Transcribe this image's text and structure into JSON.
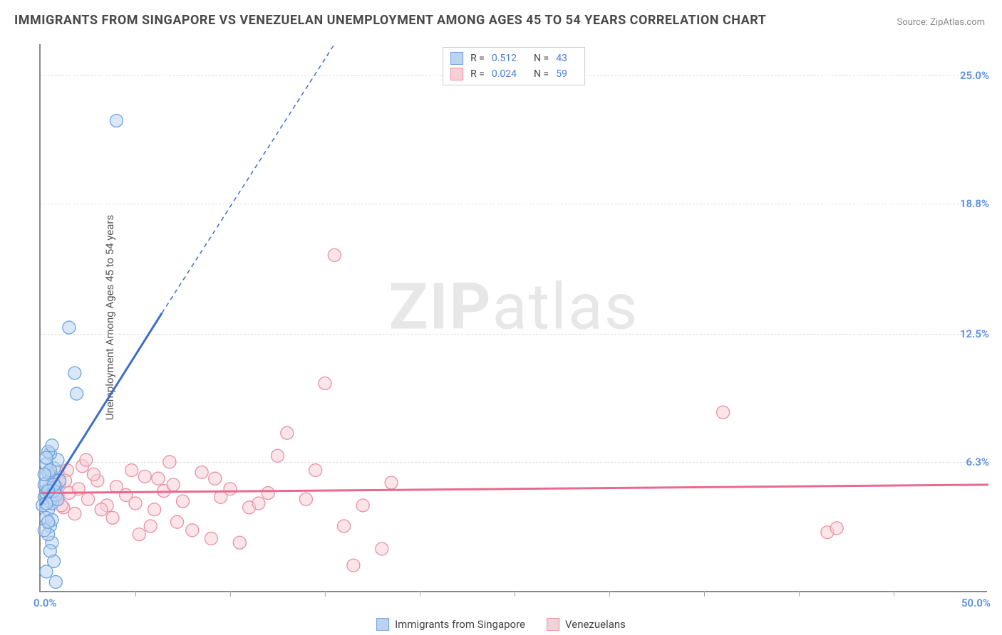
{
  "title": "IMMIGRANTS FROM SINGAPORE VS VENEZUELAN UNEMPLOYMENT AMONG AGES 45 TO 54 YEARS CORRELATION CHART",
  "source": "Source: ZipAtlas.com",
  "y_axis_label": "Unemployment Among Ages 45 to 54 years",
  "watermark_bold": "ZIP",
  "watermark_light": "atlas",
  "colors": {
    "series_a_fill": "#b9d3f0",
    "series_a_stroke": "#6fa3e0",
    "series_a_line": "#3d6fc9",
    "series_b_fill": "#f8cfd7",
    "series_b_stroke": "#e890a5",
    "series_b_line": "#e86a8e",
    "tick_label": "#5b8fe0",
    "grid": "#dddddd",
    "axis": "#888888",
    "text": "#4a4a4a"
  },
  "chart": {
    "type": "scatter",
    "xlim": [
      0,
      50
    ],
    "ylim": [
      0,
      26.5
    ],
    "y_ticks": [
      {
        "v": 6.3,
        "label": "6.3%"
      },
      {
        "v": 12.5,
        "label": "12.5%"
      },
      {
        "v": 18.8,
        "label": "18.8%"
      },
      {
        "v": 25.0,
        "label": "25.0%"
      }
    ],
    "x_origin_label": "0.0%",
    "x_max_label": "50.0%",
    "x_tick_positions": [
      5,
      10,
      15,
      20,
      25,
      30,
      35,
      40,
      45
    ],
    "marker_radius": 9,
    "marker_stroke_width": 1.3,
    "trend_line_width_solid": 3,
    "trend_line_width_dash": 1.5,
    "trend_dash": "6,5"
  },
  "legend_top": [
    {
      "swatch_fill": "#b9d3f0",
      "swatch_stroke": "#6fa3e0",
      "r": "0.512",
      "n": "43"
    },
    {
      "swatch_fill": "#f8cfd7",
      "swatch_stroke": "#e890a5",
      "r": "0.024",
      "n": "59"
    }
  ],
  "legend_bottom": [
    {
      "swatch_fill": "#b9d3f0",
      "swatch_stroke": "#6fa3e0",
      "label": "Immigrants from Singapore"
    },
    {
      "swatch_fill": "#f8cfd7",
      "swatch_stroke": "#e890a5",
      "label": "Venezuelans"
    }
  ],
  "legend_labels": {
    "r": "R  =",
    "n": "N  ="
  },
  "series_a": {
    "points": [
      [
        0.2,
        4.6
      ],
      [
        0.3,
        4.8
      ],
      [
        0.4,
        5.0
      ],
      [
        0.5,
        4.4
      ],
      [
        0.3,
        5.3
      ],
      [
        0.4,
        4.0
      ],
      [
        0.5,
        3.2
      ],
      [
        0.6,
        2.4
      ],
      [
        0.7,
        1.5
      ],
      [
        0.3,
        1.0
      ],
      [
        0.8,
        0.5
      ],
      [
        0.6,
        5.6
      ],
      [
        0.7,
        6.0
      ],
      [
        0.9,
        6.4
      ],
      [
        0.8,
        5.1
      ],
      [
        0.5,
        6.7
      ],
      [
        0.4,
        5.8
      ],
      [
        0.6,
        4.3
      ],
      [
        0.3,
        3.6
      ],
      [
        0.4,
        2.8
      ],
      [
        0.1,
        4.2
      ],
      [
        0.2,
        5.2
      ],
      [
        0.4,
        6.8
      ],
      [
        0.6,
        7.1
      ],
      [
        0.8,
        4.7
      ],
      [
        1.0,
        5.4
      ],
      [
        1.5,
        12.8
      ],
      [
        1.8,
        10.6
      ],
      [
        1.9,
        9.6
      ],
      [
        4.0,
        22.8
      ],
      [
        0.3,
        6.2
      ],
      [
        0.7,
        4.9
      ],
      [
        0.5,
        5.9
      ],
      [
        0.2,
        3.0
      ],
      [
        0.9,
        4.5
      ],
      [
        0.3,
        4.3
      ],
      [
        0.6,
        3.5
      ],
      [
        0.4,
        3.4
      ],
      [
        0.5,
        2.0
      ],
      [
        0.2,
        5.7
      ],
      [
        0.3,
        6.5
      ],
      [
        0.7,
        5.2
      ],
      [
        0.4,
        4.9
      ]
    ],
    "trend": {
      "x1": 0,
      "y1": 4.2,
      "x2_solid": 6.4,
      "y2_solid": 13.5,
      "x2_dash": 15.5,
      "y2_dash": 26.5
    }
  },
  "series_b": {
    "points": [
      [
        1.0,
        5.3
      ],
      [
        1.5,
        4.8
      ],
      [
        2.0,
        5.0
      ],
      [
        2.5,
        4.5
      ],
      [
        3.0,
        5.4
      ],
      [
        3.5,
        4.2
      ],
      [
        4.0,
        5.1
      ],
      [
        4.5,
        4.7
      ],
      [
        5.0,
        4.3
      ],
      [
        5.5,
        5.6
      ],
      [
        6.0,
        4.0
      ],
      [
        6.5,
        4.9
      ],
      [
        7.0,
        5.2
      ],
      [
        7.5,
        4.4
      ],
      [
        8.0,
        3.0
      ],
      [
        8.5,
        5.8
      ],
      [
        9.0,
        2.6
      ],
      [
        9.5,
        4.6
      ],
      [
        10.0,
        5.0
      ],
      [
        10.5,
        2.4
      ],
      [
        11.0,
        4.1
      ],
      [
        12.0,
        4.8
      ],
      [
        12.5,
        6.6
      ],
      [
        13.0,
        7.7
      ],
      [
        14.0,
        4.5
      ],
      [
        14.5,
        5.9
      ],
      [
        15.0,
        10.1
      ],
      [
        15.5,
        16.3
      ],
      [
        16.0,
        3.2
      ],
      [
        16.5,
        1.3
      ],
      [
        17.0,
        4.2
      ],
      [
        18.0,
        2.1
      ],
      [
        18.5,
        5.3
      ],
      [
        2.2,
        6.1
      ],
      [
        3.2,
        4.0
      ],
      [
        6.8,
        6.3
      ],
      [
        11.5,
        4.3
      ],
      [
        5.2,
        2.8
      ],
      [
        7.2,
        3.4
      ],
      [
        9.2,
        5.5
      ],
      [
        1.2,
        4.1
      ],
      [
        1.8,
        3.8
      ],
      [
        2.8,
        5.7
      ],
      [
        3.8,
        3.6
      ],
      [
        4.8,
        5.9
      ],
      [
        5.8,
        3.2
      ],
      [
        6.2,
        5.5
      ],
      [
        36.0,
        8.7
      ],
      [
        41.5,
        2.9
      ],
      [
        42.0,
        3.1
      ],
      [
        1.4,
        5.9
      ],
      [
        2.4,
        6.4
      ],
      [
        0.8,
        5.2
      ],
      [
        0.9,
        4.7
      ],
      [
        0.6,
        5.5
      ],
      [
        0.7,
        4.4
      ],
      [
        0.9,
        5.8
      ],
      [
        1.1,
        4.2
      ],
      [
        1.3,
        5.4
      ]
    ],
    "trend": {
      "x1": 0,
      "y1": 4.8,
      "x2": 50,
      "y2": 5.2
    }
  }
}
